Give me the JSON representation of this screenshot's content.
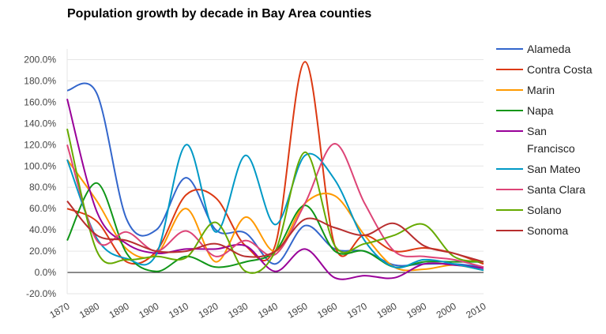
{
  "chart_data": {
    "type": "line",
    "title": "Population growth by decade in Bay Area counties",
    "xlabel": "",
    "ylabel": "",
    "x": [
      1870,
      1880,
      1890,
      1900,
      1910,
      1920,
      1930,
      1940,
      1950,
      1960,
      1970,
      1980,
      1990,
      2000,
      2010
    ],
    "x_ticks": [
      "1870",
      "1880",
      "1890",
      "1900",
      "1910",
      "1920",
      "1930",
      "1940",
      "1950",
      "1960",
      "1970",
      "1980",
      "1990",
      "2000",
      "2010"
    ],
    "ylim": [
      -20,
      210
    ],
    "y_ticks": [
      -20,
      0,
      20,
      40,
      60,
      80,
      100,
      120,
      140,
      160,
      180,
      200
    ],
    "y_tick_labels": [
      "-20.0%",
      "0.0%",
      "20.0%",
      "40.0%",
      "60.0%",
      "80.0%",
      "100.0%",
      "120.0%",
      "140.0%",
      "160.0%",
      "180.0%",
      "200.0%"
    ],
    "grid": true,
    "legend_position": "right",
    "series": [
      {
        "name": "Alameda",
        "color": "#3366cc",
        "values": [
          171,
          168,
          50,
          40,
          89,
          40,
          37,
          8,
          44,
          22,
          20,
          7,
          8,
          8,
          5
        ]
      },
      {
        "name": "Contra Costa",
        "color": "#dc3912",
        "values": [
          60,
          48,
          10,
          20,
          73,
          70,
          25,
          26,
          198,
          25,
          35,
          20,
          23,
          18,
          8
        ]
      },
      {
        "name": "Marin",
        "color": "#ff9900",
        "values": [
          106,
          67,
          22,
          17,
          60,
          10,
          52,
          20,
          65,
          72,
          35,
          5,
          3,
          7,
          2
        ]
      },
      {
        "name": "Napa",
        "color": "#109618",
        "values": [
          30,
          84,
          18,
          1,
          15,
          5,
          10,
          20,
          63,
          20,
          20,
          5,
          10,
          10,
          10
        ]
      },
      {
        "name": "San Francisco",
        "color": "#990099",
        "values": [
          163,
          57,
          27,
          18,
          22,
          22,
          25,
          1,
          22,
          -5,
          -3,
          -5,
          8,
          7,
          4
        ]
      },
      {
        "name": "San Mateo",
        "color": "#0099c6",
        "values": [
          106,
          32,
          13,
          17,
          120,
          38,
          110,
          45,
          110,
          87,
          30,
          5,
          12,
          8,
          2
        ]
      },
      {
        "name": "Santa Clara",
        "color": "#dd4477",
        "values": [
          120,
          30,
          38,
          20,
          39,
          15,
          30,
          17,
          65,
          121,
          65,
          20,
          15,
          12,
          5
        ]
      },
      {
        "name": "Solano",
        "color": "#66aa00",
        "values": [
          135,
          20,
          12,
          15,
          14,
          47,
          1,
          20,
          113,
          25,
          27,
          35,
          45,
          15,
          10
        ]
      },
      {
        "name": "Sonoma",
        "color": "#b82e2e",
        "values": [
          67,
          35,
          30,
          20,
          20,
          27,
          15,
          20,
          50,
          42,
          35,
          46,
          25,
          18,
          10
        ]
      }
    ]
  },
  "legend": {
    "items": [
      {
        "lines": [
          "Alameda"
        ]
      },
      {
        "lines": [
          "Contra Costa"
        ]
      },
      {
        "lines": [
          "Marin"
        ]
      },
      {
        "lines": [
          "Napa"
        ]
      },
      {
        "lines": [
          "San",
          "Francisco"
        ]
      },
      {
        "lines": [
          "San Mateo"
        ]
      },
      {
        "lines": [
          "Santa Clara"
        ]
      },
      {
        "lines": [
          "Solano"
        ]
      },
      {
        "lines": [
          "Sonoma"
        ]
      }
    ]
  }
}
